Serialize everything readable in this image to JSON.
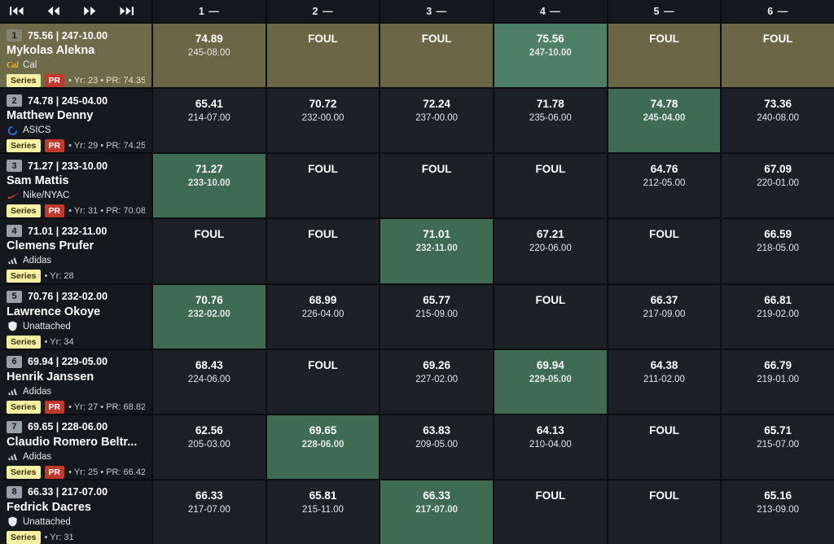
{
  "colors": {
    "background": "#0b0d10",
    "panel_bg": "#15181c",
    "cell_bg": "#1d2126",
    "active_row_bg": "#6d6b4a",
    "best_cell_bg": "#3e6b51",
    "active_best_cell_bg": "#4d8064",
    "series_badge_bg": "#f6f0a2",
    "pr_badge_bg": "#bf3a2b",
    "rank_badge_bg": "#99a0a8"
  },
  "header": {
    "rounds": [
      "1 —",
      "2 —",
      "3 —",
      "4 —",
      "5 —",
      "6 —"
    ],
    "playback_icons": [
      "skip-to-start-icon",
      "rewind-icon",
      "fast-forward-icon",
      "skip-to-end-icon"
    ]
  },
  "athletes": [
    {
      "rank": "1",
      "best": "75.56 | 247-10.00",
      "name": "Mykolas Alekna",
      "team": "Cal",
      "team_icon": "cal",
      "series_label": "Series",
      "pr_badge": "PR",
      "meta": "• Yr: 23 • PR: 74.35",
      "active": true,
      "attempts": [
        {
          "mark": "74.89",
          "imperial": "245-08.00",
          "best": false
        },
        {
          "mark": "FOUL",
          "imperial": "",
          "best": false
        },
        {
          "mark": "FOUL",
          "imperial": "",
          "best": false
        },
        {
          "mark": "75.56",
          "imperial": "247-10.00",
          "best": true
        },
        {
          "mark": "FOUL",
          "imperial": "",
          "best": false
        },
        {
          "mark": "FOUL",
          "imperial": "",
          "best": false
        }
      ]
    },
    {
      "rank": "2",
      "best": "74.78 | 245-04.00",
      "name": "Matthew Denny",
      "team": "ASICS",
      "team_icon": "asics",
      "series_label": "Series",
      "pr_badge": "PR",
      "meta": "• Yr: 29 • PR: 74.25",
      "active": false,
      "attempts": [
        {
          "mark": "65.41",
          "imperial": "214-07.00",
          "best": false
        },
        {
          "mark": "70.72",
          "imperial": "232-00.00",
          "best": false
        },
        {
          "mark": "72.24",
          "imperial": "237-00.00",
          "best": false
        },
        {
          "mark": "71.78",
          "imperial": "235-06.00",
          "best": false
        },
        {
          "mark": "74.78",
          "imperial": "245-04.00",
          "best": true
        },
        {
          "mark": "73.36",
          "imperial": "240-08.00",
          "best": false
        }
      ]
    },
    {
      "rank": "3",
      "best": "71.27 | 233-10.00",
      "name": "Sam Mattis",
      "team": "Nike/NYAC",
      "team_icon": "nike",
      "series_label": "Series",
      "pr_badge": "PR",
      "meta": "• Yr: 31 • PR: 70.08",
      "active": false,
      "attempts": [
        {
          "mark": "71.27",
          "imperial": "233-10.00",
          "best": true
        },
        {
          "mark": "FOUL",
          "imperial": "",
          "best": false
        },
        {
          "mark": "FOUL",
          "imperial": "",
          "best": false
        },
        {
          "mark": "FOUL",
          "imperial": "",
          "best": false
        },
        {
          "mark": "64.76",
          "imperial": "212-05.00",
          "best": false
        },
        {
          "mark": "67.09",
          "imperial": "220-01.00",
          "best": false
        }
      ]
    },
    {
      "rank": "4",
      "best": "71.01 | 232-11.00",
      "name": "Clemens Prufer",
      "team": "Adidas",
      "team_icon": "adidas",
      "series_label": "Series",
      "pr_badge": "",
      "meta": "• Yr: 28",
      "active": false,
      "attempts": [
        {
          "mark": "FOUL",
          "imperial": "",
          "best": false
        },
        {
          "mark": "FOUL",
          "imperial": "",
          "best": false
        },
        {
          "mark": "71.01",
          "imperial": "232-11.00",
          "best": true
        },
        {
          "mark": "67.21",
          "imperial": "220-06.00",
          "best": false
        },
        {
          "mark": "FOUL",
          "imperial": "",
          "best": false
        },
        {
          "mark": "66.59",
          "imperial": "218-05.00",
          "best": false
        }
      ]
    },
    {
      "rank": "5",
      "best": "70.76 | 232-02.00",
      "name": "Lawrence Okoye",
      "team": "Unattached",
      "team_icon": "unattached",
      "series_label": "Series",
      "pr_badge": "",
      "meta": "• Yr: 34",
      "active": false,
      "attempts": [
        {
          "mark": "70.76",
          "imperial": "232-02.00",
          "best": true
        },
        {
          "mark": "68.99",
          "imperial": "226-04.00",
          "best": false
        },
        {
          "mark": "65.77",
          "imperial": "215-09.00",
          "best": false
        },
        {
          "mark": "FOUL",
          "imperial": "",
          "best": false
        },
        {
          "mark": "66.37",
          "imperial": "217-09.00",
          "best": false
        },
        {
          "mark": "66.81",
          "imperial": "219-02.00",
          "best": false
        }
      ]
    },
    {
      "rank": "6",
      "best": "69.94 | 229-05.00",
      "name": "Henrik Janssen",
      "team": "Adidas",
      "team_icon": "adidas",
      "series_label": "Series",
      "pr_badge": "PR",
      "meta": "• Yr: 27 • PR: 68.82",
      "active": false,
      "attempts": [
        {
          "mark": "68.43",
          "imperial": "224-06.00",
          "best": false
        },
        {
          "mark": "FOUL",
          "imperial": "",
          "best": false
        },
        {
          "mark": "69.26",
          "imperial": "227-02.00",
          "best": false
        },
        {
          "mark": "69.94",
          "imperial": "229-05.00",
          "best": true
        },
        {
          "mark": "64.38",
          "imperial": "211-02.00",
          "best": false
        },
        {
          "mark": "66.79",
          "imperial": "219-01.00",
          "best": false
        }
      ]
    },
    {
      "rank": "7",
      "best": "69.65 | 228-06.00",
      "name": "Claudio Romero Beltr...",
      "team": "Adidas",
      "team_icon": "adidas",
      "series_label": "Series",
      "pr_badge": "PR",
      "meta": "• Yr: 25 • PR: 66.42",
      "active": false,
      "attempts": [
        {
          "mark": "62.56",
          "imperial": "205-03.00",
          "best": false
        },
        {
          "mark": "69.65",
          "imperial": "228-06.00",
          "best": true
        },
        {
          "mark": "63.83",
          "imperial": "209-05.00",
          "best": false
        },
        {
          "mark": "64.13",
          "imperial": "210-04.00",
          "best": false
        },
        {
          "mark": "FOUL",
          "imperial": "",
          "best": false
        },
        {
          "mark": "65.71",
          "imperial": "215-07.00",
          "best": false
        }
      ]
    },
    {
      "rank": "8",
      "best": "66.33 | 217-07.00",
      "name": "Fedrick Dacres",
      "team": "Unattached",
      "team_icon": "unattached",
      "series_label": "Series",
      "pr_badge": "",
      "meta": "• Yr: 31",
      "active": false,
      "attempts": [
        {
          "mark": "66.33",
          "imperial": "217-07.00",
          "best": false
        },
        {
          "mark": "65.81",
          "imperial": "215-11.00",
          "best": false
        },
        {
          "mark": "66.33",
          "imperial": "217-07.00",
          "best": true
        },
        {
          "mark": "FOUL",
          "imperial": "",
          "best": false
        },
        {
          "mark": "FOUL",
          "imperial": "",
          "best": false
        },
        {
          "mark": "65.16",
          "imperial": "213-09.00",
          "best": false
        }
      ]
    }
  ]
}
